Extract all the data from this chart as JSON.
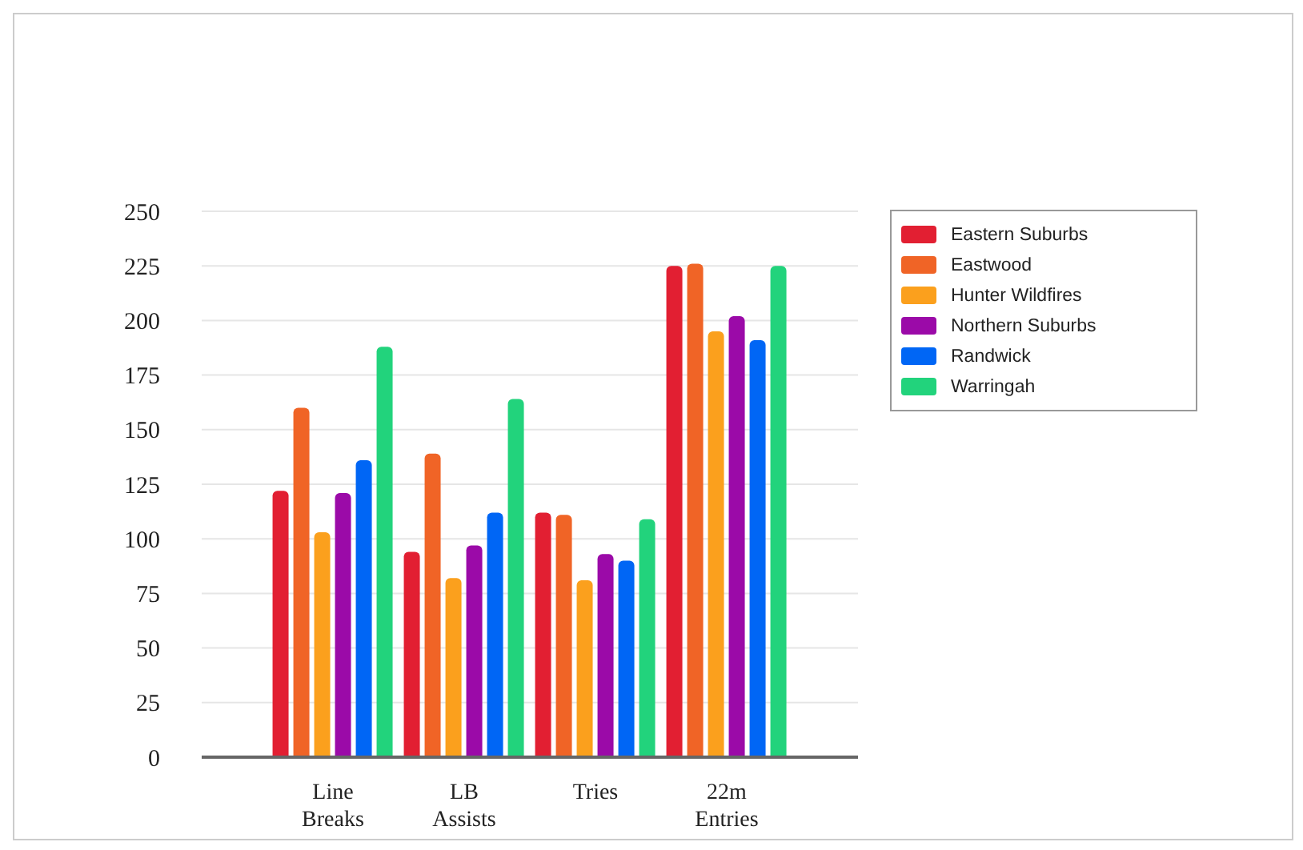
{
  "chart_data": {
    "type": "bar",
    "categories": [
      "Line Breaks",
      "LB Assists",
      "Tries",
      "22m Entries"
    ],
    "series": [
      {
        "name": "Eastern Suburbs",
        "color": "#e21f32",
        "values": [
          122,
          94,
          112,
          225
        ]
      },
      {
        "name": "Eastwood",
        "color": "#f06426",
        "values": [
          160,
          139,
          111,
          226
        ]
      },
      {
        "name": "Hunter Wildfires",
        "color": "#fba01d",
        "values": [
          103,
          82,
          81,
          195
        ]
      },
      {
        "name": "Northern Suburbs",
        "color": "#9b0aa8",
        "values": [
          121,
          97,
          93,
          202
        ]
      },
      {
        "name": "Randwick",
        "color": "#0066f5",
        "values": [
          136,
          112,
          90,
          191
        ]
      },
      {
        "name": "Warringah",
        "color": "#22d37c",
        "values": [
          188,
          164,
          109,
          225
        ]
      }
    ],
    "ylim": [
      0,
      250
    ],
    "yticks": [
      0,
      25,
      50,
      75,
      100,
      125,
      150,
      175,
      200,
      225,
      250
    ],
    "grid": "y",
    "legend": "top right"
  }
}
